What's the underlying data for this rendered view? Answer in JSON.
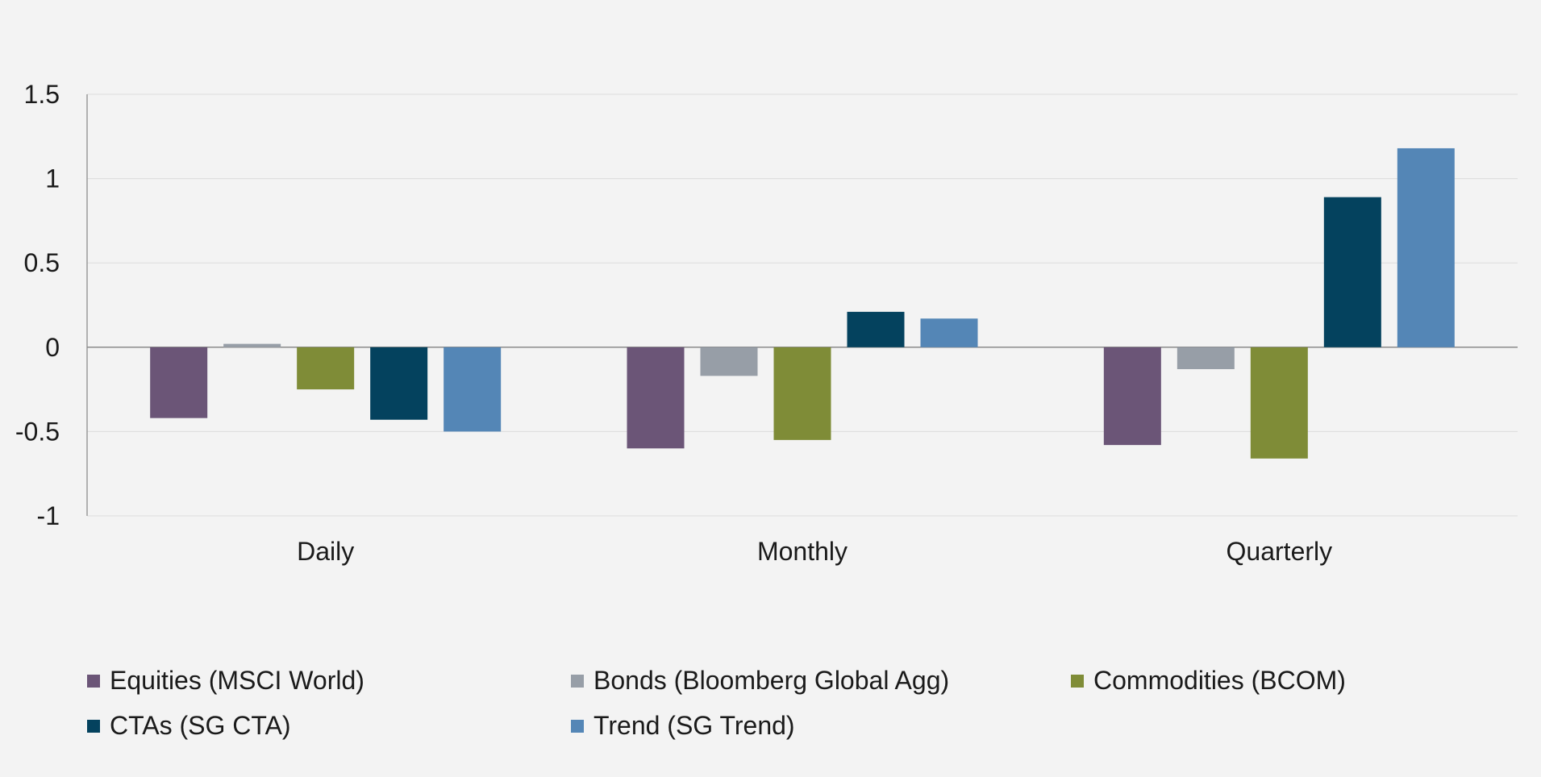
{
  "chart_data": {
    "type": "bar",
    "title": "",
    "xlabel": "",
    "ylabel": "",
    "categories": [
      "Daily",
      "Monthly",
      "Quarterly"
    ],
    "ylim": [
      -1,
      1.5
    ],
    "yticks": [
      1.5,
      1,
      0.5,
      0,
      -0.5,
      -1
    ],
    "ytick_labels": [
      "1.5",
      "1",
      "0.5",
      "0",
      "-0.5",
      "-1"
    ],
    "grid": true,
    "legend_position": "bottom",
    "series": [
      {
        "name": "Equities (MSCI World)",
        "color": "#6b5577",
        "values": [
          -0.42,
          -0.6,
          -0.58
        ]
      },
      {
        "name": "Bonds (Bloomberg Global Agg)",
        "color": "#979ea7",
        "values": [
          0.02,
          -0.17,
          -0.13
        ]
      },
      {
        "name": "Commodities (BCOM)",
        "color": "#7f8c37",
        "values": [
          -0.25,
          -0.55,
          -0.66
        ]
      },
      {
        "name": "CTAs (SG CTA)",
        "color": "#04425e",
        "values": [
          -0.43,
          0.21,
          0.89
        ]
      },
      {
        "name": "Trend (SG Trend)",
        "color": "#5486b6",
        "values": [
          -0.5,
          0.17,
          1.18
        ]
      }
    ]
  }
}
